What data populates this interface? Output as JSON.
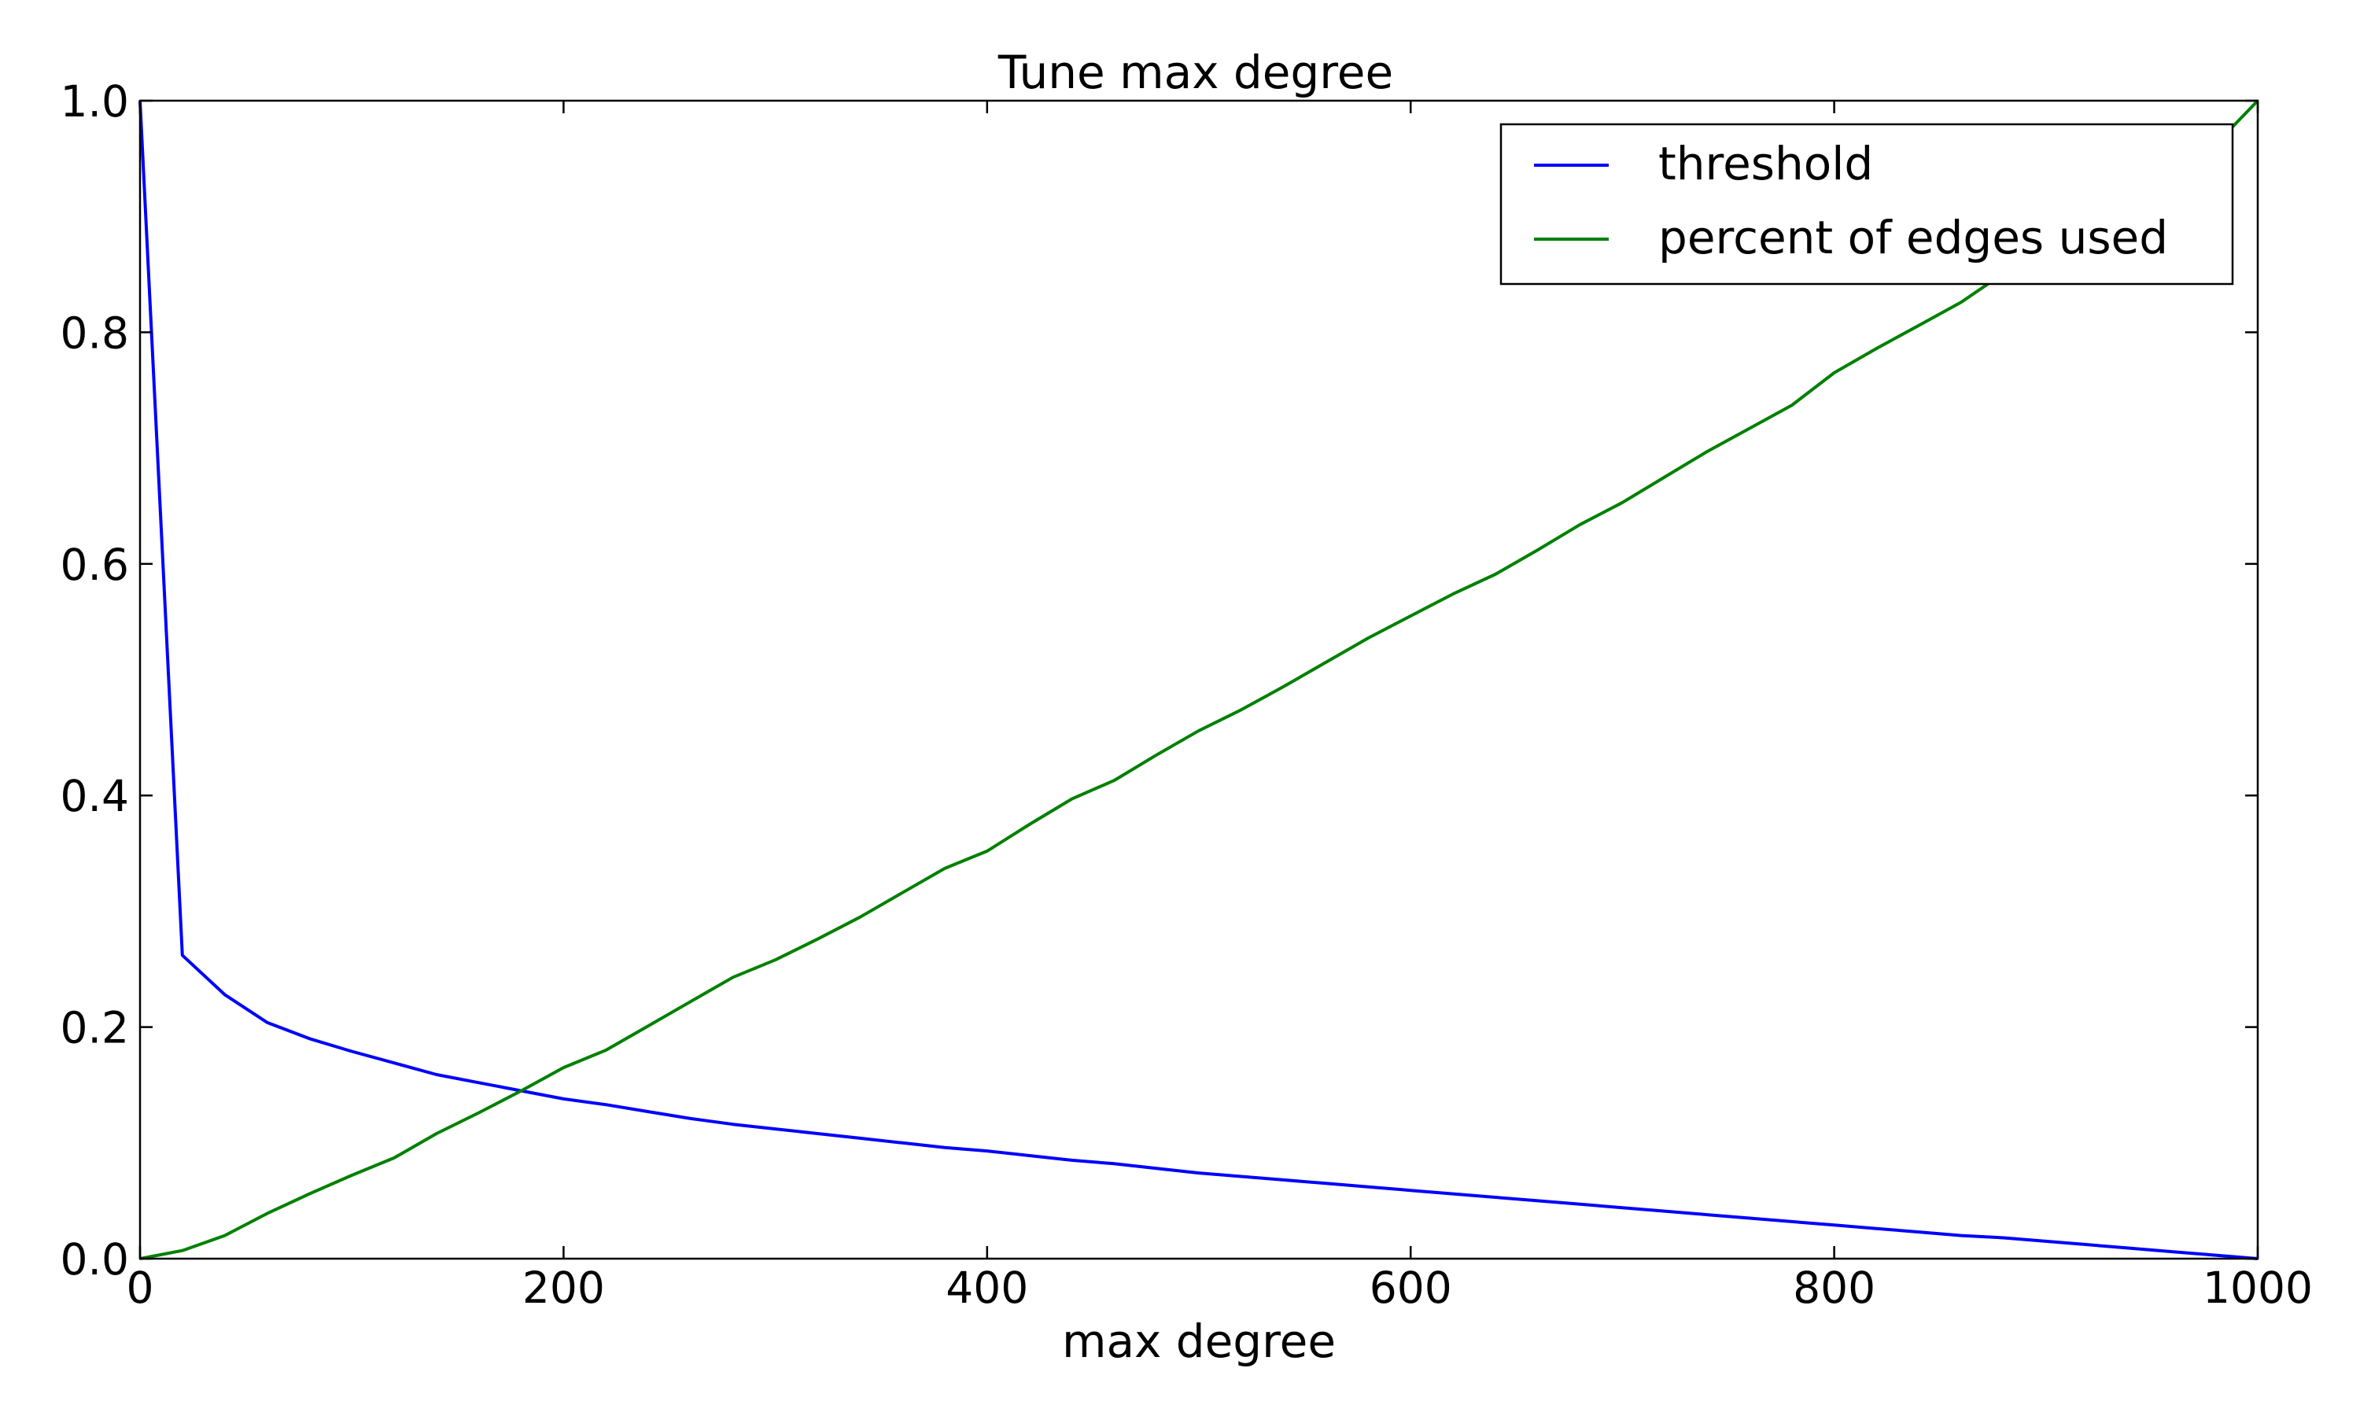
{
  "chart_data": {
    "type": "line",
    "title": "Tune max degree",
    "xlabel": "max degree",
    "ylabel": "",
    "xlim": [
      0,
      1000
    ],
    "ylim": [
      0.0,
      1.0
    ],
    "xticks": [
      "0",
      "200",
      "400",
      "600",
      "800",
      "1000"
    ],
    "yticks": [
      "0.0",
      "0.2",
      "0.4",
      "0.6",
      "0.8",
      "1.0"
    ],
    "legend_position": "top-right",
    "grid": false,
    "x": [
      0,
      20,
      40,
      60,
      80,
      100,
      120,
      140,
      160,
      180,
      200,
      220,
      240,
      260,
      280,
      300,
      320,
      340,
      360,
      380,
      400,
      420,
      440,
      460,
      480,
      500,
      520,
      540,
      560,
      580,
      600,
      620,
      640,
      660,
      680,
      700,
      720,
      740,
      760,
      780,
      800,
      820,
      840,
      860,
      880,
      900,
      920,
      940,
      960,
      980,
      1000
    ],
    "series": [
      {
        "name": "threshold",
        "color": "#0000ff",
        "values": [
          1.0,
          0.262,
          0.228,
          0.204,
          0.19,
          0.179,
          0.169,
          0.159,
          0.152,
          0.145,
          0.138,
          0.133,
          0.127,
          0.121,
          0.116,
          0.112,
          0.108,
          0.104,
          0.1,
          0.096,
          0.093,
          0.089,
          0.085,
          0.082,
          0.078,
          0.074,
          0.071,
          0.068,
          0.065,
          0.062,
          0.059,
          0.056,
          0.053,
          0.05,
          0.047,
          0.044,
          0.041,
          0.038,
          0.035,
          0.032,
          0.029,
          0.026,
          0.023,
          0.02,
          0.018,
          0.015,
          0.012,
          0.009,
          0.006,
          0.003,
          0.0
        ]
      },
      {
        "name": "percent of edges used",
        "color": "#008000",
        "values": [
          0.0,
          0.007,
          0.02,
          0.039,
          0.056,
          0.072,
          0.087,
          0.108,
          0.126,
          0.145,
          0.165,
          0.18,
          0.201,
          0.222,
          0.243,
          0.258,
          0.276,
          0.295,
          0.316,
          0.337,
          0.352,
          0.375,
          0.397,
          0.413,
          0.435,
          0.456,
          0.474,
          0.494,
          0.515,
          0.536,
          0.555,
          0.574,
          0.591,
          0.612,
          0.634,
          0.653,
          0.675,
          0.697,
          0.717,
          0.737,
          0.765,
          0.786,
          0.806,
          0.826,
          0.851,
          0.873,
          0.894,
          0.915,
          0.936,
          0.962,
          1.0
        ]
      }
    ]
  }
}
